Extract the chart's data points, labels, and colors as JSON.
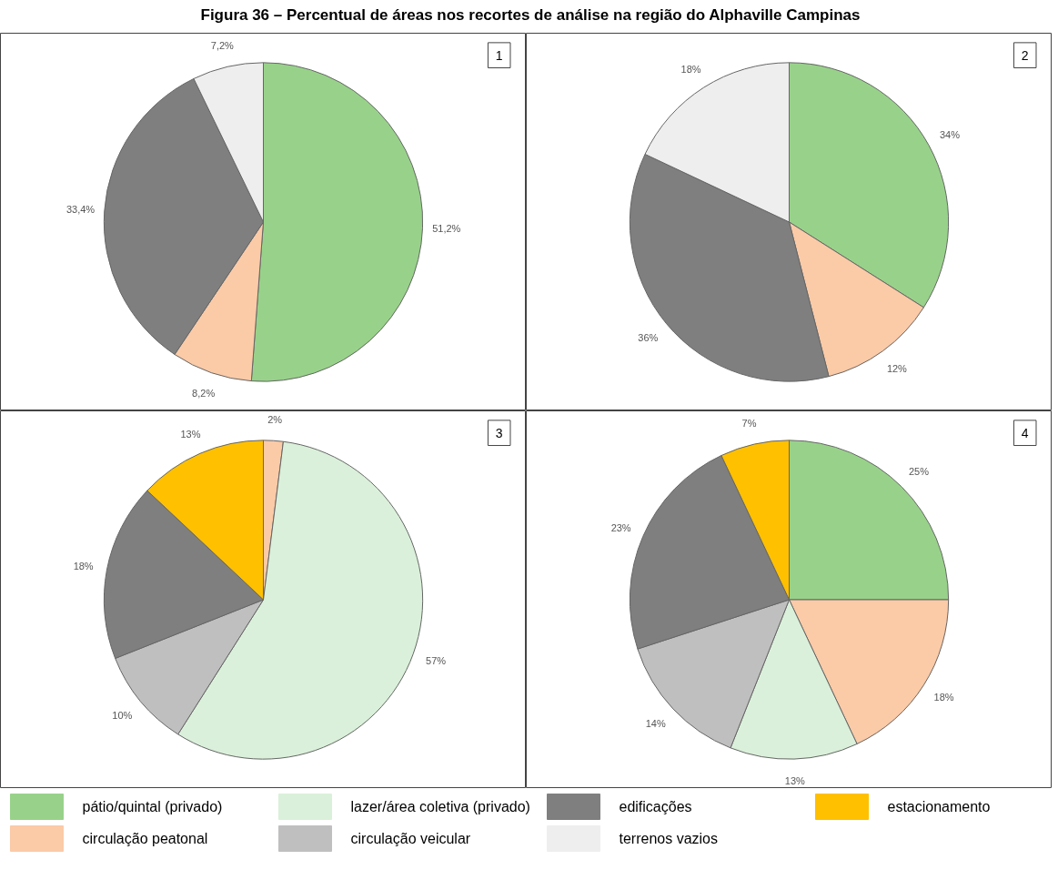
{
  "chart_data": [
    {
      "type": "pie",
      "title": "1",
      "annotations": [
        "Figura 36 – Percentual de áreas nos recortes de análise na região do Alphaville Campinas"
      ],
      "legend": "bottom",
      "categories": [
        "pátio/quintal (privado)",
        "circulação peatonal",
        "lazer/área coletiva (privado)",
        "circulação veicular",
        "edificações",
        "terrenos vazios",
        "estacionamento"
      ],
      "values": [
        51.2,
        8.2,
        0,
        0,
        33.4,
        7.2,
        0
      ],
      "value_labels": [
        "51,2%",
        "8,2%",
        null,
        null,
        "33,4%",
        "7,2%",
        null
      ],
      "colors": [
        "#98d28a",
        "#fbcaa7",
        "#daf0da",
        "#bfbfbf",
        "#7f7f7f",
        "#eeeeee",
        "#ffc000"
      ]
    },
    {
      "type": "pie",
      "title": "2",
      "categories": [
        null,
        null,
        null,
        null
      ],
      "values": [
        34,
        12,
        36,
        18
      ],
      "value_labels": [
        "34%",
        "12%",
        "36%",
        "18%"
      ],
      "colors": [
        "#98d28a",
        "#fbcaa7",
        "#7f7f7f",
        "#eeeeee"
      ]
    },
    {
      "type": "pie",
      "title": "3",
      "categories": [
        null,
        null,
        null,
        null,
        null
      ],
      "values": [
        2,
        57,
        10,
        18,
        13
      ],
      "value_labels": [
        "2%",
        "57%",
        "10%",
        "18%",
        "13%"
      ],
      "colors": [
        "#fbcaa7",
        "#daf0da",
        "#bfbfbf",
        "#7f7f7f",
        "#ffc000"
      ]
    },
    {
      "type": "pie",
      "title": "4",
      "categories": [
        null,
        null,
        null,
        null,
        null,
        null
      ],
      "values": [
        25,
        18,
        13,
        14,
        23,
        7
      ],
      "value_labels": [
        "25%",
        "18%",
        "13%",
        "14%",
        "23%",
        "7%"
      ],
      "colors": [
        "#98d28a",
        "#fbcaa7",
        "#daf0da",
        "#bfbfbf",
        "#7f7f7f",
        "#ffc000"
      ]
    }
  ]
}
